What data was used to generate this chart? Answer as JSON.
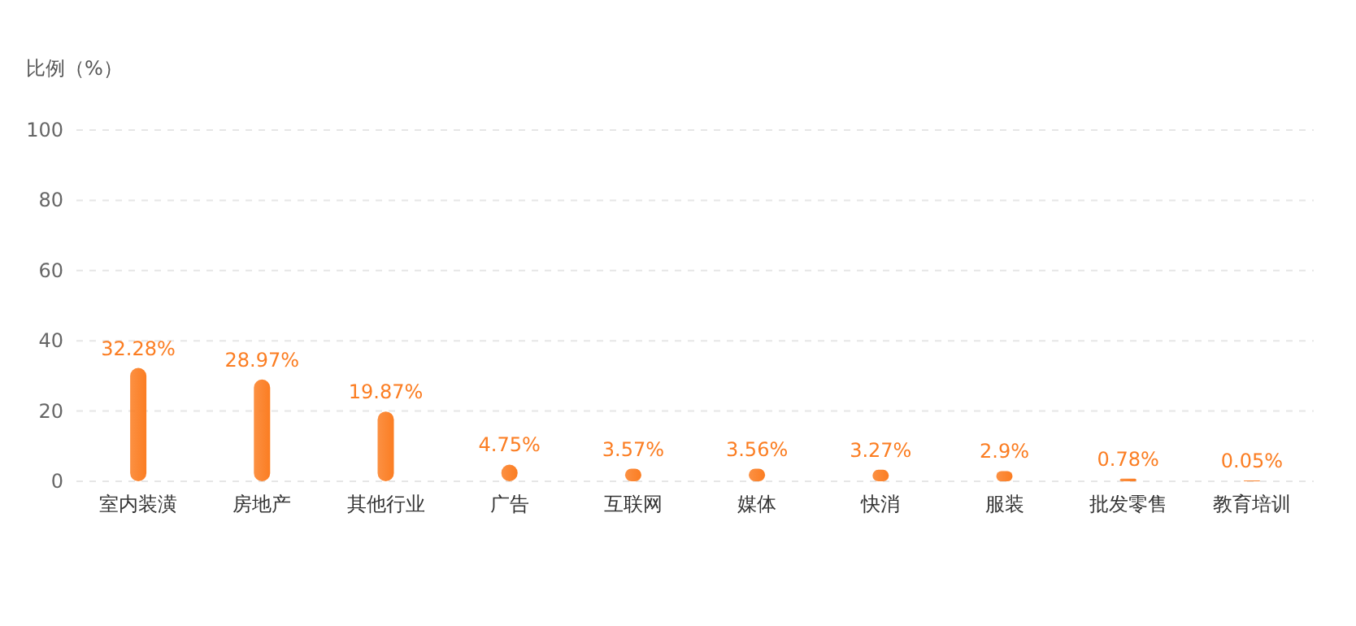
{
  "chart_data": {
    "type": "bar",
    "ylabel": "比例（%）",
    "categories": [
      "室内装潢",
      "房地产",
      "其他行业",
      "广告",
      "互联网",
      "媒体",
      "快消",
      "服装",
      "批发零售",
      "教育培训"
    ],
    "values": [
      32.28,
      28.97,
      19.87,
      4.75,
      3.57,
      3.56,
      3.27,
      2.9,
      0.78,
      0.05
    ],
    "value_labels": [
      "32.28%",
      "28.97%",
      "19.87%",
      "4.75%",
      "3.57%",
      "3.56%",
      "3.27%",
      "2.9%",
      "0.78%",
      "0.05%"
    ],
    "color": "#fb7d22",
    "ylim": [
      0,
      100
    ],
    "yticks": [
      0,
      20,
      40,
      60,
      80,
      100
    ],
    "grid": "y"
  }
}
